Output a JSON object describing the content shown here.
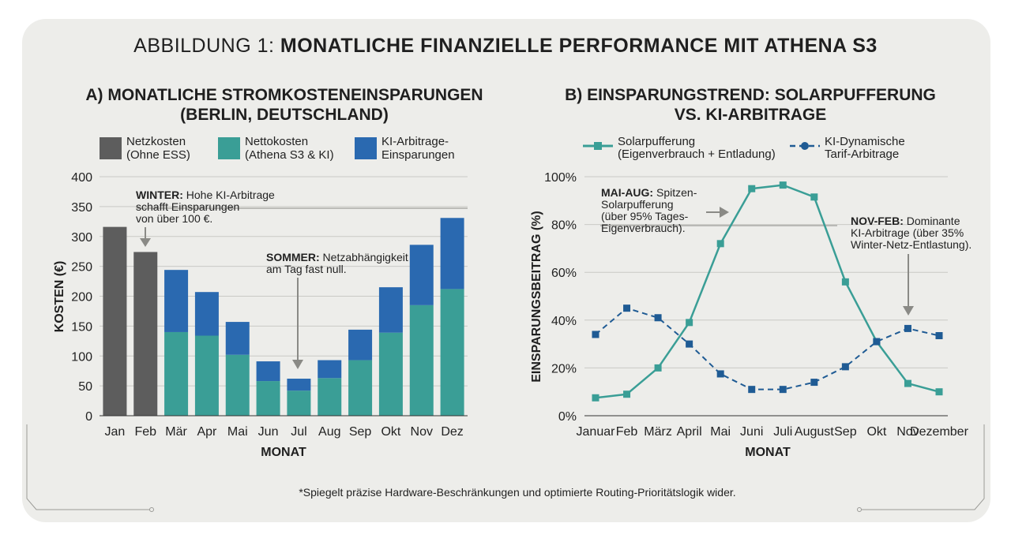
{
  "figure": {
    "title_prefix": "ABBILDUNG 1:",
    "title_main": "MONATLICHE FINANZIELLE PERFORMANCE MIT ATHENA S3",
    "footnote": "*Spiegelt präzise Hardware-Beschränkungen und optimierte Routing-Prioritätslogik wider."
  },
  "colors": {
    "grid_only": "#5d5d5d",
    "net": "#3a9e96",
    "savings": "#2a69b0",
    "solar": "#3a9e96",
    "ki": "#1f5b94",
    "background": "#ededea"
  },
  "chart_data": [
    {
      "type": "bar",
      "stacked": true,
      "title_line1": "A) MONATLICHE STROMKOSTENEINSPARUNGEN",
      "title_line2": "(BERLIN, DEUTSCHLAND)",
      "xlabel": "MONAT",
      "ylabel": "KOSTEN (€)",
      "ylim": [
        0,
        400
      ],
      "yticks": [
        "0",
        "50",
        "100",
        "150",
        "200",
        "250",
        "300",
        "350",
        "400"
      ],
      "categories": [
        "Jan",
        "Feb",
        "Mär",
        "Apr",
        "Mai",
        "Jun",
        "Jul",
        "Aug",
        "Sep",
        "Okt",
        "Nov",
        "Dez"
      ],
      "legend": [
        {
          "line1": "Netzkosten",
          "line2": "(Ohne ESS)"
        },
        {
          "line1": "Nettokosten",
          "line2": "(Athena S3 & KI)"
        },
        {
          "line1": "KI-Arbitrage-",
          "line2": "Einsparungen"
        }
      ],
      "series": [
        {
          "name": "Netzkosten (Ohne ESS)",
          "values": [
            316,
            274,
            0,
            0,
            0,
            0,
            0,
            0,
            0,
            0,
            0,
            0
          ]
        },
        {
          "name": "Nettokosten (Athena S3 & KI)",
          "values": [
            0,
            0,
            140,
            134,
            102,
            58,
            42,
            63,
            93,
            139,
            185,
            212
          ]
        },
        {
          "name": "KI-Arbitrage-Einsparungen",
          "values": [
            0,
            0,
            104,
            73,
            55,
            33,
            20,
            30,
            51,
            76,
            101,
            119
          ]
        }
      ],
      "annotations": [
        {
          "bold": "WINTER:",
          "text": " Hohe KI-Arbitrage",
          "line2": "schafft Einsparungen",
          "line3": "von über 100 €."
        },
        {
          "bold": "SOMMER:",
          "text": " Netzabhängigkeit",
          "line2": "am Tag fast null."
        }
      ]
    },
    {
      "type": "line",
      "title_line1": "B) EINSPARUNGSTREND: SOLARPUFFERUNG",
      "title_line2": "VS. KI-ARBITRAGE",
      "xlabel": "MONAT",
      "ylabel": "EINSPARUNGSBEITRAG (%)",
      "ylim": [
        0,
        100
      ],
      "yticks": [
        "0%",
        "20%",
        "40%",
        "60%",
        "80%",
        "100%"
      ],
      "x": [
        "Januar",
        "Feb",
        "März",
        "April",
        "Mai",
        "Juni",
        "Juli",
        "August",
        "Sep",
        "Okt",
        "Nov",
        "Dezember"
      ],
      "legend": [
        {
          "line1": "Solarpufferung",
          "line2": "(Eigenverbrauch + Entladung)"
        },
        {
          "line1": "KI-Dynamische",
          "line2": "Tarif-Arbitrage"
        }
      ],
      "series": [
        {
          "name": "Solarpufferung (Eigenverbrauch + Entladung)",
          "values": [
            7.5,
            9,
            20,
            39,
            72,
            95,
            96.5,
            91.5,
            56,
            31,
            13.5,
            10
          ]
        },
        {
          "name": "KI-Dynamische Tarif-Arbitrage",
          "values": [
            34,
            45,
            41,
            30,
            17.5,
            11,
            11,
            14,
            20.5,
            31,
            36.5,
            33.5
          ]
        }
      ],
      "annotations": [
        {
          "bold": "MAI-AUG:",
          "text": " Spitzen-",
          "line2": "Solarpufferung",
          "line3": "(über 95% Tages-",
          "line4": "Eigenverbrauch)."
        },
        {
          "bold": "NOV-FEB:",
          "text": " Dominante",
          "line2": "KI-Arbitrage (über 35%",
          "line3": "Winter-Netz-Entlastung)."
        }
      ]
    }
  ]
}
